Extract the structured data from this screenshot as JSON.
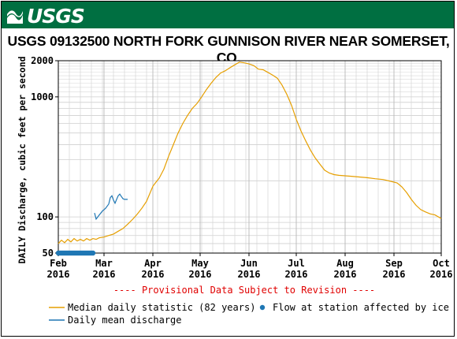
{
  "header": {
    "logo_text": "USGS",
    "brand_color": "#006f41",
    "title": "USGS 09132500 NORTH FORK GUNNISON RIVER NEAR SOMERSET, CO."
  },
  "chart_data": {
    "type": "line",
    "y_scale": "log",
    "ylabel": "DAILY Discharge, cubic feet per second",
    "ylim": [
      50,
      2000
    ],
    "y_ticks": [
      {
        "value": 50,
        "label": "50"
      },
      {
        "value": 100,
        "label": "100"
      },
      {
        "value": 1000,
        "label": "1000"
      },
      {
        "value": 2000,
        "label": "2000"
      }
    ],
    "xlim": [
      "2016-02-01",
      "2016-10-01"
    ],
    "x_ticks": [
      {
        "date": "2016-02-01",
        "month": "Feb",
        "year": "2016"
      },
      {
        "date": "2016-03-01",
        "month": "Mar",
        "year": "2016"
      },
      {
        "date": "2016-04-01",
        "month": "Apr",
        "year": "2016"
      },
      {
        "date": "2016-05-01",
        "month": "May",
        "year": "2016"
      },
      {
        "date": "2016-06-01",
        "month": "Jun",
        "year": "2016"
      },
      {
        "date": "2016-07-01",
        "month": "Jul",
        "year": "2016"
      },
      {
        "date": "2016-08-01",
        "month": "Aug",
        "year": "2016"
      },
      {
        "date": "2016-09-01",
        "month": "Sep",
        "year": "2016"
      },
      {
        "date": "2016-10-01",
        "month": "Oct",
        "year": "2016"
      }
    ],
    "grid": true,
    "annotation": "---- Provisional Data Subject to Revision ----",
    "series": [
      {
        "name": "Median daily statistic (82 years)",
        "color": "#e69f00",
        "points": [
          [
            "2016-02-01",
            60
          ],
          [
            "2016-02-03",
            64
          ],
          [
            "2016-02-05",
            61
          ],
          [
            "2016-02-07",
            65
          ],
          [
            "2016-02-09",
            62
          ],
          [
            "2016-02-11",
            66
          ],
          [
            "2016-02-13",
            63
          ],
          [
            "2016-02-15",
            65
          ],
          [
            "2016-02-17",
            63
          ],
          [
            "2016-02-19",
            66
          ],
          [
            "2016-02-21",
            64
          ],
          [
            "2016-02-23",
            66
          ],
          [
            "2016-02-25",
            65
          ],
          [
            "2016-02-27",
            67
          ],
          [
            "2016-03-01",
            68
          ],
          [
            "2016-03-04",
            70
          ],
          [
            "2016-03-07",
            72
          ],
          [
            "2016-03-10",
            76
          ],
          [
            "2016-03-13",
            80
          ],
          [
            "2016-03-16",
            87
          ],
          [
            "2016-03-19",
            95
          ],
          [
            "2016-03-22",
            105
          ],
          [
            "2016-03-25",
            118
          ],
          [
            "2016-03-28",
            135
          ],
          [
            "2016-04-01",
            180
          ],
          [
            "2016-04-03",
            195
          ],
          [
            "2016-04-05",
            210
          ],
          [
            "2016-04-08",
            250
          ],
          [
            "2016-04-11",
            320
          ],
          [
            "2016-04-14",
            400
          ],
          [
            "2016-04-17",
            500
          ],
          [
            "2016-04-20",
            600
          ],
          [
            "2016-04-23",
            700
          ],
          [
            "2016-04-26",
            800
          ],
          [
            "2016-04-29",
            880
          ],
          [
            "2016-05-02",
            1000
          ],
          [
            "2016-05-05",
            1150
          ],
          [
            "2016-05-08",
            1300
          ],
          [
            "2016-05-11",
            1450
          ],
          [
            "2016-05-14",
            1580
          ],
          [
            "2016-05-17",
            1650
          ],
          [
            "2016-05-20",
            1750
          ],
          [
            "2016-05-23",
            1850
          ],
          [
            "2016-05-26",
            1950
          ],
          [
            "2016-05-29",
            1920
          ],
          [
            "2016-06-01",
            1880
          ],
          [
            "2016-06-04",
            1820
          ],
          [
            "2016-06-07",
            1700
          ],
          [
            "2016-06-10",
            1680
          ],
          [
            "2016-06-13",
            1600
          ],
          [
            "2016-06-16",
            1520
          ],
          [
            "2016-06-19",
            1430
          ],
          [
            "2016-06-22",
            1250
          ],
          [
            "2016-06-25",
            1050
          ],
          [
            "2016-06-28",
            850
          ],
          [
            "2016-07-01",
            650
          ],
          [
            "2016-07-04",
            520
          ],
          [
            "2016-07-07",
            430
          ],
          [
            "2016-07-10",
            360
          ],
          [
            "2016-07-13",
            310
          ],
          [
            "2016-07-16",
            275
          ],
          [
            "2016-07-19",
            245
          ],
          [
            "2016-07-22",
            232
          ],
          [
            "2016-07-25",
            225
          ],
          [
            "2016-07-28",
            222
          ],
          [
            "2016-08-01",
            220
          ],
          [
            "2016-08-05",
            218
          ],
          [
            "2016-08-10",
            215
          ],
          [
            "2016-08-15",
            212
          ],
          [
            "2016-08-20",
            208
          ],
          [
            "2016-08-25",
            205
          ],
          [
            "2016-08-30",
            198
          ],
          [
            "2016-09-03",
            192
          ],
          [
            "2016-09-06",
            178
          ],
          [
            "2016-09-09",
            160
          ],
          [
            "2016-09-12",
            140
          ],
          [
            "2016-09-15",
            125
          ],
          [
            "2016-09-18",
            115
          ],
          [
            "2016-09-21",
            110
          ],
          [
            "2016-09-24",
            106
          ],
          [
            "2016-09-27",
            104
          ],
          [
            "2016-10-01",
            97
          ]
        ]
      },
      {
        "name": "Daily mean discharge",
        "color": "#1f77b4",
        "points": [
          [
            "2016-02-24",
            108
          ],
          [
            "2016-02-25",
            96
          ],
          [
            "2016-02-27",
            104
          ],
          [
            "2016-02-29",
            112
          ],
          [
            "2016-03-02",
            118
          ],
          [
            "2016-03-04",
            128
          ],
          [
            "2016-03-05",
            145
          ],
          [
            "2016-03-06",
            150
          ],
          [
            "2016-03-07",
            138
          ],
          [
            "2016-03-08",
            130
          ],
          [
            "2016-03-09",
            140
          ],
          [
            "2016-03-10",
            150
          ],
          [
            "2016-03-11",
            155
          ],
          [
            "2016-03-12",
            148
          ],
          [
            "2016-03-13",
            142
          ],
          [
            "2016-03-14",
            140
          ],
          [
            "2016-03-16",
            140
          ]
        ]
      },
      {
        "name": "Flow at station affected by ice",
        "color": "#1f77b4",
        "marker": "dot",
        "points": [
          [
            "2016-02-01",
            50
          ],
          [
            "2016-02-02",
            50
          ],
          [
            "2016-02-03",
            50
          ],
          [
            "2016-02-04",
            50
          ],
          [
            "2016-02-05",
            50
          ],
          [
            "2016-02-06",
            50
          ],
          [
            "2016-02-07",
            50
          ],
          [
            "2016-02-08",
            50
          ],
          [
            "2016-02-09",
            50
          ],
          [
            "2016-02-10",
            50
          ],
          [
            "2016-02-11",
            50
          ],
          [
            "2016-02-12",
            50
          ],
          [
            "2016-02-13",
            50
          ],
          [
            "2016-02-14",
            50
          ],
          [
            "2016-02-15",
            50
          ],
          [
            "2016-02-16",
            50
          ],
          [
            "2016-02-17",
            50
          ],
          [
            "2016-02-18",
            50
          ],
          [
            "2016-02-19",
            50
          ],
          [
            "2016-02-20",
            50
          ],
          [
            "2016-02-21",
            50
          ],
          [
            "2016-02-22",
            50
          ],
          [
            "2016-02-23",
            50
          ]
        ]
      }
    ],
    "legend": [
      {
        "label": "Median daily statistic (82 years)",
        "color": "#e69f00",
        "marker": "line"
      },
      {
        "label": "Flow at station affected by ice",
        "color": "#1f77b4",
        "marker": "dot"
      },
      {
        "label": "Daily mean discharge",
        "color": "#1f77b4",
        "marker": "line"
      }
    ]
  }
}
